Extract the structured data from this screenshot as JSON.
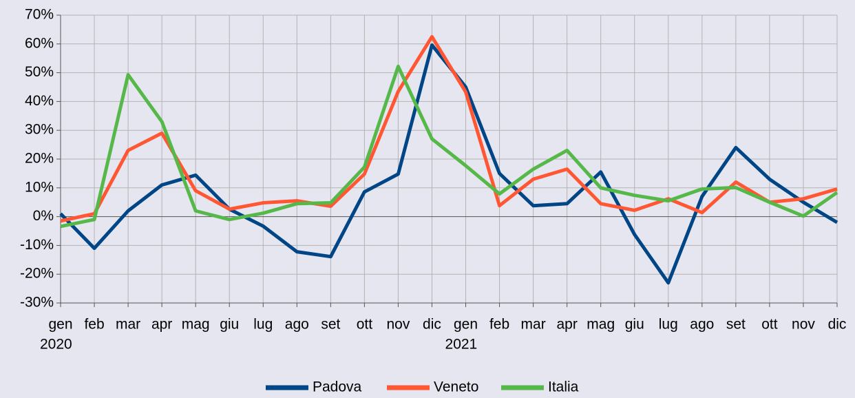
{
  "chart_data": {
    "type": "line",
    "categories": [
      "gen",
      "feb",
      "mar",
      "apr",
      "mag",
      "giu",
      "lug",
      "ago",
      "set",
      "ott",
      "nov",
      "dic",
      "gen",
      "feb",
      "mar",
      "apr",
      "mag",
      "giu",
      "lug",
      "ago",
      "set",
      "ott",
      "nov",
      "dic"
    ],
    "years": [
      "2020",
      "2021"
    ],
    "ylim": [
      -30,
      70
    ],
    "yticks": [
      {
        "value": -30,
        "label": "-30%"
      },
      {
        "value": -20,
        "label": "-20%"
      },
      {
        "value": -10,
        "label": "-10%"
      },
      {
        "value": 0,
        "label": "0%"
      },
      {
        "value": 10,
        "label": "10%"
      },
      {
        "value": 20,
        "label": "20%"
      },
      {
        "value": 30,
        "label": "30%"
      },
      {
        "value": 40,
        "label": "40%"
      },
      {
        "value": 50,
        "label": "50%"
      },
      {
        "value": 60,
        "label": "60%"
      },
      {
        "value": 70,
        "label": "70%"
      }
    ],
    "grid": true,
    "legend": "bottom",
    "series": [
      {
        "name": "Padova",
        "color": "#004586",
        "values": [
          1,
          -11,
          2,
          11,
          14.4,
          2.6,
          -3.3,
          -12.2,
          -13.9,
          8.6,
          14.8,
          59.6,
          45,
          15,
          3.8,
          4.5,
          15.5,
          -6.2,
          -23,
          7,
          24,
          13,
          5,
          -2
        ]
      },
      {
        "name": "Veneto",
        "color": "#ff5733",
        "values": [
          -1.5,
          1,
          23,
          29,
          9,
          2.6,
          4.8,
          5.5,
          3.6,
          14.8,
          43.5,
          62.5,
          43.3,
          3.8,
          13,
          16.5,
          4.5,
          2.2,
          6.2,
          1.4,
          12,
          5,
          6.2,
          9.6
        ]
      },
      {
        "name": "Italia",
        "color": "#57b84a",
        "values": [
          -3.4,
          -1,
          49.3,
          33,
          2,
          -1,
          1.2,
          4.5,
          4.8,
          17.2,
          52.2,
          27,
          17.7,
          7.9,
          16.5,
          23,
          10,
          7.4,
          5.5,
          9.6,
          10.1,
          5,
          0.2,
          8.4
        ]
      }
    ]
  }
}
